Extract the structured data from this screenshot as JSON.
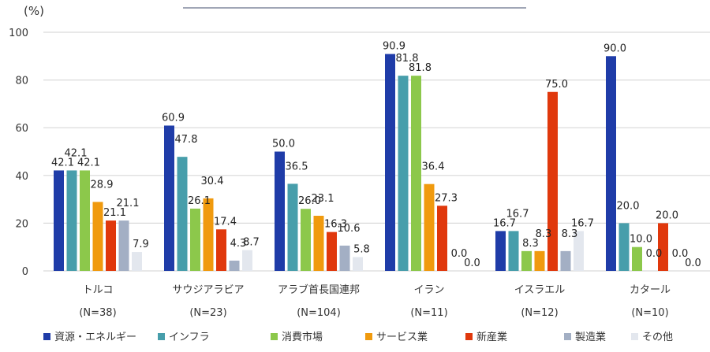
{
  "chart_data": {
    "type": "bar",
    "title": "",
    "xlabel": "",
    "ylabel": "(%)",
    "ylim": [
      0,
      100
    ],
    "yticks": [
      0,
      20,
      40,
      60,
      80,
      100
    ],
    "grid": true,
    "legend_position": "bottom",
    "categories": [
      "トルコ",
      "サウジアラビア",
      "アラブ首長国連邦",
      "イラン",
      "イスラエル",
      "カタール"
    ],
    "category_n": [
      "(N=38)",
      "(N=23)",
      "(N=104)",
      "(N=11)",
      "(N=12)",
      "(N=10)"
    ],
    "series": [
      {
        "name": "資源・エネルギー",
        "color": "#1F3CA8",
        "values": [
          42.1,
          60.9,
          50.0,
          90.9,
          16.7,
          90.0
        ]
      },
      {
        "name": "インフラ",
        "color": "#479EAB",
        "values": [
          42.1,
          47.8,
          36.5,
          81.8,
          16.7,
          20.0
        ]
      },
      {
        "name": "消費市場",
        "color": "#8CC84B",
        "values": [
          42.1,
          26.1,
          26.0,
          81.8,
          8.3,
          10.0
        ]
      },
      {
        "name": "サービス業",
        "color": "#F09A0E",
        "values": [
          28.9,
          30.4,
          23.1,
          36.4,
          8.3,
          0.0
        ]
      },
      {
        "name": "新産業",
        "color": "#E0380C",
        "values": [
          21.1,
          17.4,
          16.3,
          27.3,
          75.0,
          20.0
        ]
      },
      {
        "name": "製造業",
        "color": "#A3AFC4",
        "values": [
          21.1,
          4.3,
          10.6,
          0.0,
          8.3,
          0.0
        ]
      },
      {
        "name": "その他",
        "color": "#E3E7EE",
        "values": [
          7.9,
          8.7,
          5.8,
          0.0,
          16.7,
          0.0
        ]
      }
    ],
    "data_labels": [
      [
        "42.1",
        "42.1",
        "42.1",
        "28.9",
        "21.1",
        "21.1",
        "7.9"
      ],
      [
        "60.9",
        "47.8",
        "26.1",
        "30.4",
        "17.4",
        "4.3",
        "8.7"
      ],
      [
        "50.0",
        "36.5",
        "26.0",
        "23.1",
        "16.3",
        "10.6",
        "5.8"
      ],
      [
        "90.9",
        "81.8",
        "81.8",
        "36.4",
        "27.3",
        "0.0",
        "0.0"
      ],
      [
        "16.7",
        "16.7",
        "8.3",
        "8.3",
        "75.0",
        "8.3",
        "16.7"
      ],
      [
        "90.0",
        "20.0",
        "10.0",
        "0.0",
        "20.0",
        "0.0",
        "0.0"
      ]
    ]
  }
}
